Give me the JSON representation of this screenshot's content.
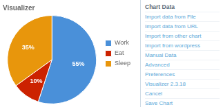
{
  "chart_data": {
    "type": "pie",
    "title": "Visualizer",
    "categories": [
      "Work",
      "Eat",
      "Sleep"
    ],
    "values": [
      55,
      10,
      35
    ],
    "value_labels": [
      "55%",
      "10%",
      "35%"
    ],
    "colors": [
      "#4a90d9",
      "#cc2200",
      "#e8960c"
    ],
    "data_labels": true,
    "legend": "right",
    "annotations": [
      "Chart Data",
      "Import data from File",
      "Import data from URL",
      "Import from other chart",
      "Import from wordpress",
      "Manual Data",
      "Advanced",
      "Preferences",
      "Visualizer 2.3.18",
      "Cancel",
      "Save Chart"
    ]
  }
}
